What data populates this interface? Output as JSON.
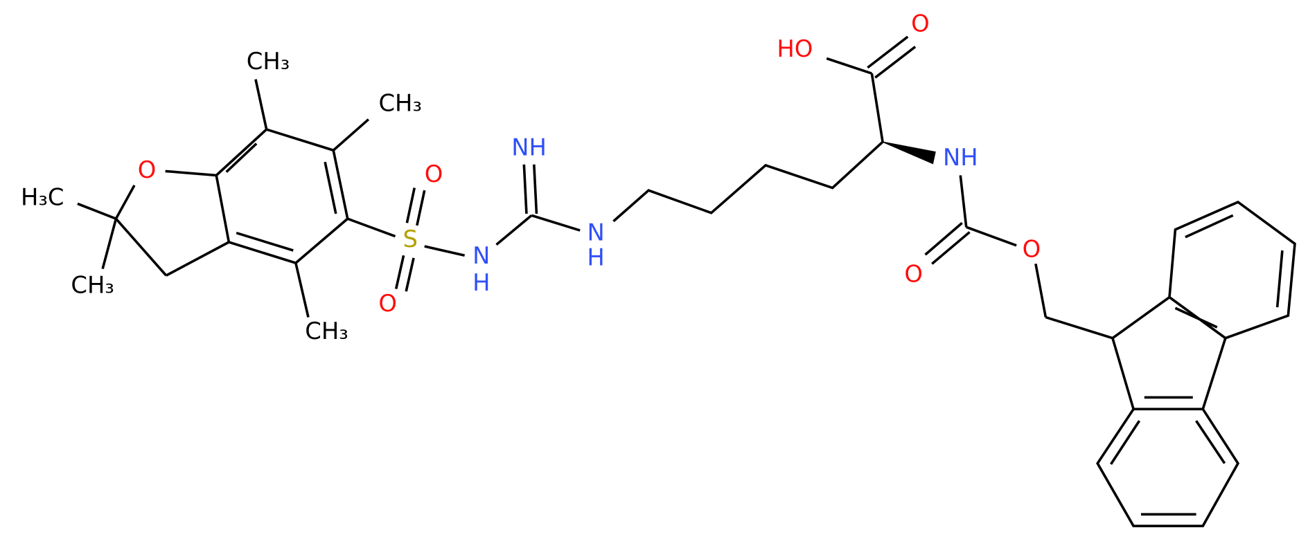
{
  "nodes": [
    {
      "label": "CH₃"
    },
    {
      "label": "CH₃"
    },
    {
      "label": "O"
    },
    {
      "label": "H₃C"
    },
    {
      "label": "CH₃"
    },
    {
      "label": "CH₃"
    },
    {
      "label": "S"
    },
    {
      "label": "O"
    },
    {
      "label": "O"
    },
    {
      "label": "N"
    },
    {
      "label": "H"
    },
    {
      "label": "NH"
    },
    {
      "label": "N"
    },
    {
      "label": "H"
    },
    {
      "label": "HO"
    },
    {
      "label": "O"
    },
    {
      "label": "NH"
    },
    {
      "label": "O"
    },
    {
      "label": "O"
    }
  ]
}
